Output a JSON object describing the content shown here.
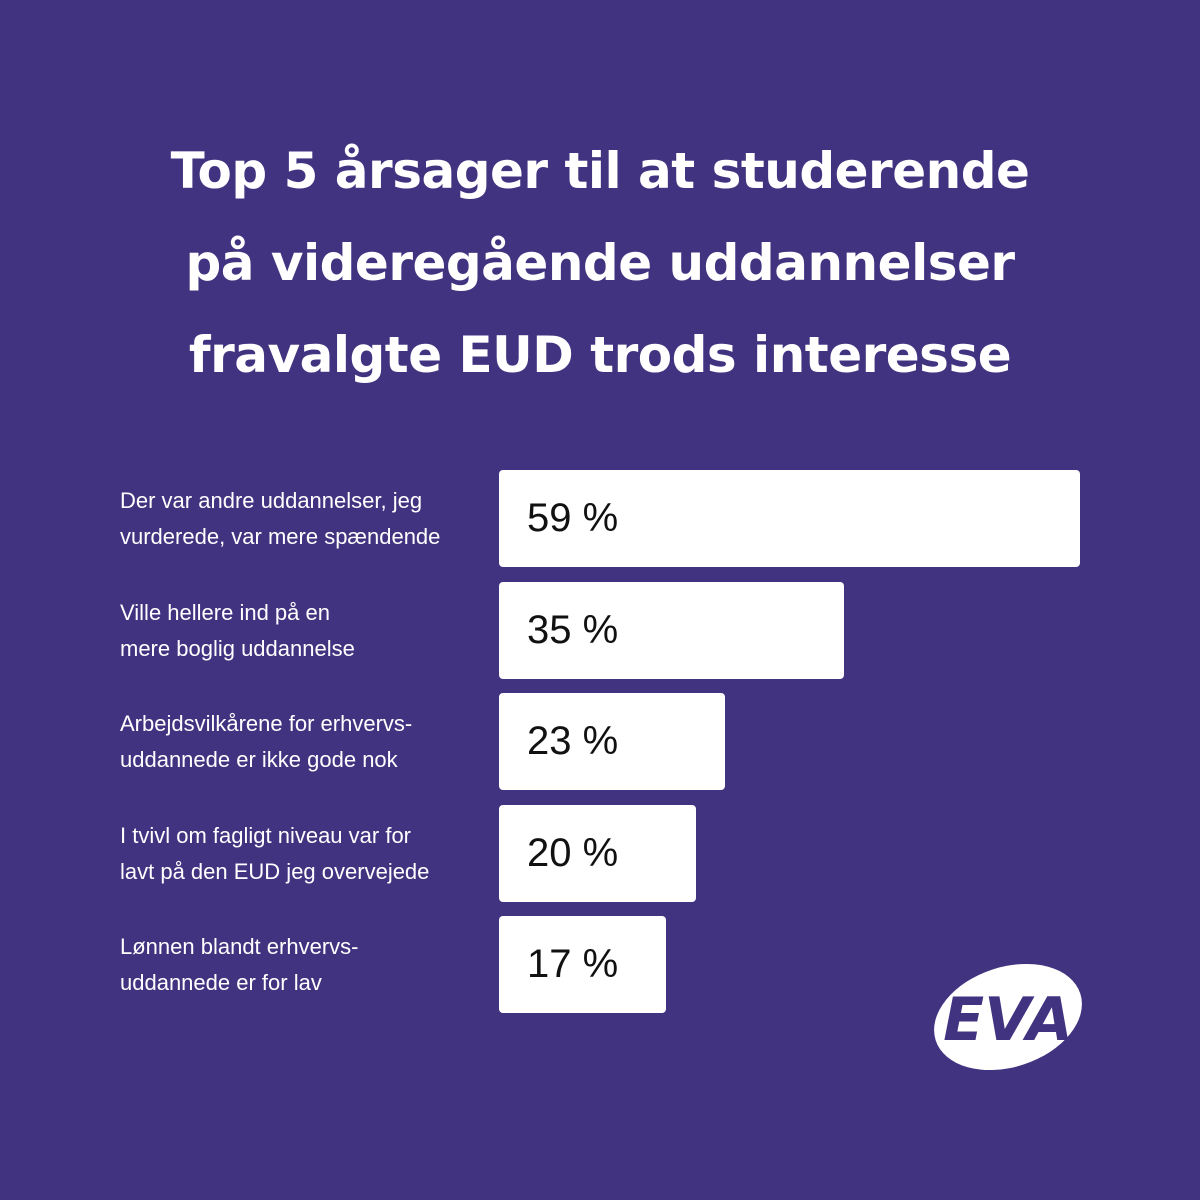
{
  "title": "Top 5 årsager til at studerende\npå videregående uddannelser\nfravalgte EUD trods interesse",
  "colors": {
    "background": "#423380",
    "bar": "#ffffff",
    "text": "#ffffff",
    "value_text": "#111111"
  },
  "chart_data": {
    "type": "bar",
    "orientation": "horizontal",
    "title": "Top 5 årsager til at studerende på videregående uddannelser fravalgte EUD trods interesse",
    "categories": [
      "Der var andre uddannelser, jeg\nvurderede, var mere spændende",
      "Ville hellere ind på en\nmere boglig uddannelse",
      "Arbejdsvilkårene for erhvervs-\nuddannede er ikke gode nok",
      "I tvivl om fagligt niveau var for\nlavt på den EUD jeg overvejede",
      "Lønnen blandt erhvervs-\nuddannede er for lav"
    ],
    "values": [
      59,
      35,
      23,
      20,
      17
    ],
    "value_labels": [
      "59 %",
      "35 %",
      "23 %",
      "20 %",
      "17 %"
    ],
    "unit": "%",
    "xlim": [
      0,
      59
    ],
    "grid": false,
    "legend": "none"
  },
  "logo": {
    "text": "EVA",
    "icon": "eva-logo-icon"
  }
}
